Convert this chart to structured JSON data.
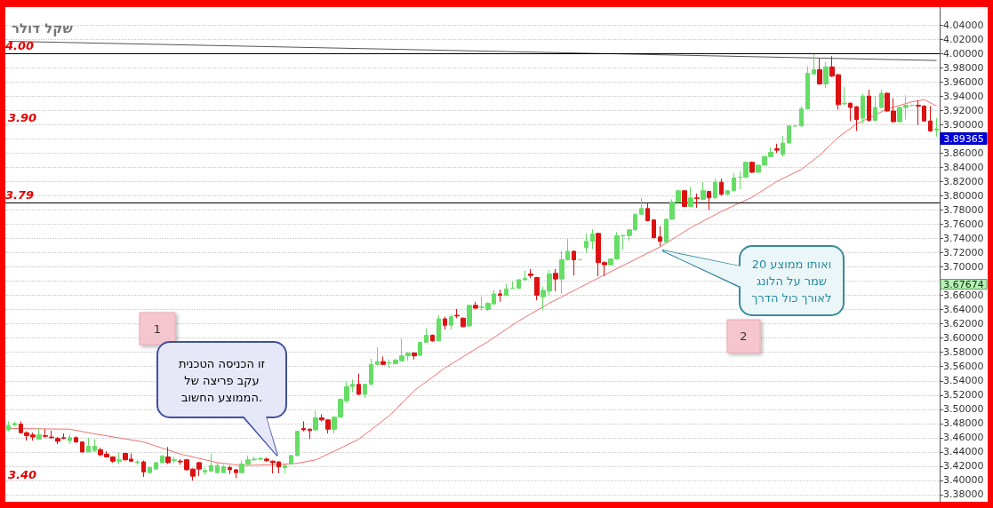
{
  "chart_data": {
    "type": "candlestick",
    "title": "שקל דולר",
    "categories": [
      null,
      null,
      null,
      null,
      null,
      null,
      null,
      null,
      null,
      null,
      null,
      null,
      null,
      null,
      null,
      null,
      null,
      null,
      null,
      null,
      null,
      null,
      null,
      null,
      null,
      null,
      null,
      null,
      null,
      null,
      null,
      null,
      null,
      null,
      null,
      null,
      null,
      null,
      null,
      null,
      null,
      null,
      null,
      null,
      null,
      null,
      null,
      null,
      null,
      null,
      null,
      null,
      null,
      null,
      null,
      null,
      null,
      null,
      null,
      null,
      null,
      null,
      null,
      null,
      null,
      null,
      null,
      null,
      null,
      null,
      null,
      null,
      null,
      null,
      null,
      null,
      null,
      null,
      null,
      null,
      null,
      null,
      null,
      null,
      null,
      null,
      null,
      null,
      null,
      null,
      null,
      null,
      null,
      null,
      null,
      null,
      null,
      null,
      null,
      null,
      null,
      null,
      null,
      null,
      null,
      null,
      null,
      null,
      null,
      null,
      null,
      null,
      null,
      null,
      null,
      null,
      null,
      null,
      null,
      null,
      null,
      null,
      null,
      null,
      null,
      null,
      null,
      null,
      null,
      null,
      null,
      null,
      null,
      null,
      null,
      null,
      null,
      null,
      null,
      null,
      null,
      null,
      null,
      null,
      null,
      null,
      null,
      null,
      null,
      null,
      null,
      null
    ],
    "ohlc": [
      [
        3.471,
        3.483,
        3.469,
        3.477
      ],
      [
        3.478,
        3.482,
        3.476,
        3.48
      ],
      [
        3.479,
        3.483,
        3.466,
        3.467
      ],
      [
        3.467,
        3.469,
        3.456,
        3.463
      ],
      [
        3.464,
        3.467,
        3.456,
        3.461
      ],
      [
        3.458,
        3.474,
        3.458,
        3.464
      ],
      [
        3.463,
        3.472,
        3.46,
        3.462
      ],
      [
        3.461,
        3.47,
        3.459,
        3.46
      ],
      [
        3.459,
        3.461,
        3.451,
        3.455
      ],
      [
        3.46,
        3.466,
        3.458,
        3.459
      ],
      [
        3.456,
        3.465,
        3.451,
        3.46
      ],
      [
        3.46,
        3.462,
        3.453,
        3.454
      ],
      [
        3.454,
        3.455,
        3.439,
        3.44
      ],
      [
        3.44,
        3.46,
        3.44,
        3.448
      ],
      [
        3.442,
        3.458,
        3.44,
        3.448
      ],
      [
        3.443,
        3.446,
        3.434,
        3.436
      ],
      [
        3.437,
        3.441,
        3.432,
        3.433
      ],
      [
        3.433,
        3.434,
        3.425,
        3.427
      ],
      [
        3.427,
        3.439,
        3.423,
        3.429
      ],
      [
        3.438,
        3.439,
        3.428,
        3.429
      ],
      [
        3.43,
        3.438,
        3.426,
        3.427
      ],
      [
        3.425,
        3.429,
        3.422,
        3.426
      ],
      [
        3.426,
        3.428,
        3.405,
        3.412
      ],
      [
        3.411,
        3.42,
        3.41,
        3.418
      ],
      [
        3.416,
        3.426,
        3.415,
        3.425
      ],
      [
        3.425,
        3.436,
        3.424,
        3.434
      ],
      [
        3.433,
        3.447,
        3.423,
        3.425
      ],
      [
        3.428,
        3.433,
        3.424,
        3.429
      ],
      [
        3.427,
        3.43,
        3.422,
        3.426
      ],
      [
        3.429,
        3.43,
        3.414,
        3.415
      ],
      [
        3.416,
        3.417,
        3.4,
        3.406
      ],
      [
        3.425,
        3.426,
        3.406,
        3.416
      ],
      [
        3.412,
        3.418,
        3.408,
        3.414
      ],
      [
        3.413,
        3.438,
        3.412,
        3.421
      ],
      [
        3.411,
        3.425,
        3.41,
        3.421
      ],
      [
        3.411,
        3.422,
        3.41,
        3.419
      ],
      [
        3.418,
        3.421,
        3.409,
        3.415
      ],
      [
        3.415,
        3.416,
        3.403,
        3.411
      ],
      [
        3.411,
        3.428,
        3.41,
        3.423
      ],
      [
        3.423,
        3.435,
        3.422,
        3.429
      ],
      [
        3.429,
        3.433,
        3.427,
        3.43
      ],
      [
        3.43,
        3.432,
        3.428,
        3.431
      ],
      [
        3.43,
        3.432,
        3.426,
        3.428
      ],
      [
        3.427,
        3.428,
        3.41,
        3.425
      ],
      [
        3.426,
        3.427,
        3.41,
        3.419
      ],
      [
        3.418,
        3.422,
        3.41,
        3.421
      ],
      [
        3.423,
        3.436,
        3.422,
        3.435
      ],
      [
        3.435,
        3.47,
        3.434,
        3.469
      ],
      [
        3.473,
        3.483,
        3.469,
        3.471
      ],
      [
        3.472,
        3.473,
        3.458,
        3.47
      ],
      [
        3.471,
        3.498,
        3.47,
        3.488
      ],
      [
        3.488,
        3.493,
        3.483,
        3.485
      ],
      [
        3.485,
        3.486,
        3.466,
        3.472
      ],
      [
        3.472,
        3.49,
        3.466,
        3.489
      ],
      [
        3.489,
        3.515,
        3.488,
        3.514
      ],
      [
        3.512,
        3.539,
        3.509,
        3.532
      ],
      [
        3.532,
        3.542,
        3.524,
        3.535
      ],
      [
        3.535,
        3.55,
        3.52,
        3.521
      ],
      [
        3.521,
        3.536,
        3.516,
        3.535
      ],
      [
        3.535,
        3.571,
        3.534,
        3.563
      ],
      [
        3.563,
        3.587,
        3.562,
        3.567
      ],
      [
        3.567,
        3.574,
        3.562,
        3.563
      ],
      [
        3.565,
        3.57,
        3.558,
        3.565
      ],
      [
        3.564,
        3.571,
        3.563,
        3.569
      ],
      [
        3.568,
        3.599,
        3.568,
        3.575
      ],
      [
        3.575,
        3.58,
        3.568,
        3.579
      ],
      [
        3.579,
        3.58,
        3.57,
        3.575
      ],
      [
        3.576,
        3.595,
        3.575,
        3.594
      ],
      [
        3.594,
        3.614,
        3.594,
        3.604
      ],
      [
        3.604,
        3.605,
        3.595,
        3.596
      ],
      [
        3.596,
        3.632,
        3.596,
        3.627
      ],
      [
        3.627,
        3.63,
        3.612,
        3.618
      ],
      [
        3.618,
        3.633,
        3.612,
        3.63
      ],
      [
        3.632,
        3.641,
        3.628,
        3.631
      ],
      [
        3.628,
        3.629,
        3.615,
        3.616
      ],
      [
        3.617,
        3.647,
        3.616,
        3.646
      ],
      [
        3.646,
        3.651,
        3.641,
        3.642
      ],
      [
        3.643,
        3.658,
        3.639,
        3.644
      ],
      [
        3.64,
        3.65,
        3.638,
        3.649
      ],
      [
        3.648,
        3.668,
        3.647,
        3.662
      ],
      [
        3.662,
        3.668,
        3.651,
        3.66
      ],
      [
        3.66,
        3.676,
        3.659,
        3.669
      ],
      [
        3.67,
        3.68,
        3.669,
        3.67
      ],
      [
        3.67,
        3.683,
        3.669,
        3.682
      ],
      [
        3.682,
        3.695,
        3.681,
        3.684
      ],
      [
        3.69,
        3.697,
        3.684,
        3.688
      ],
      [
        3.685,
        3.686,
        3.653,
        3.66
      ],
      [
        3.658,
        3.672,
        3.639,
        3.667
      ],
      [
        3.666,
        3.696,
        3.66,
        3.69
      ],
      [
        3.691,
        3.697,
        3.666,
        3.683
      ],
      [
        3.683,
        3.722,
        3.662,
        3.71
      ],
      [
        3.71,
        3.739,
        3.709,
        3.722
      ],
      [
        3.722,
        3.723,
        3.688,
        3.71
      ],
      [
        3.71,
        3.711,
        3.709,
        3.71
      ],
      [
        3.727,
        3.747,
        3.72,
        3.736
      ],
      [
        3.736,
        3.753,
        3.725,
        3.746
      ],
      [
        3.747,
        3.748,
        3.687,
        3.706
      ],
      [
        3.706,
        3.708,
        3.687,
        3.703
      ],
      [
        3.703,
        3.712,
        3.702,
        3.711
      ],
      [
        3.711,
        3.749,
        3.71,
        3.744
      ],
      [
        3.744,
        3.745,
        3.724,
        3.744
      ],
      [
        3.744,
        3.753,
        3.737,
        3.752
      ],
      [
        3.752,
        3.775,
        3.751,
        3.774
      ],
      [
        3.774,
        3.797,
        3.773,
        3.782
      ],
      [
        3.782,
        3.79,
        3.764,
        3.765
      ],
      [
        3.766,
        3.767,
        3.74,
        3.741
      ],
      [
        3.742,
        3.757,
        3.729,
        3.736
      ],
      [
        3.735,
        3.768,
        3.734,
        3.767
      ],
      [
        3.767,
        3.795,
        3.766,
        3.791
      ],
      [
        3.791,
        3.808,
        3.79,
        3.807
      ],
      [
        3.807,
        3.808,
        3.784,
        3.785
      ],
      [
        3.785,
        3.812,
        3.784,
        3.797
      ],
      [
        3.797,
        3.803,
        3.783,
        3.796
      ],
      [
        3.795,
        3.819,
        3.794,
        3.807
      ],
      [
        3.806,
        3.807,
        3.78,
        3.797
      ],
      [
        3.797,
        3.824,
        3.796,
        3.819
      ],
      [
        3.819,
        3.824,
        3.8,
        3.802
      ],
      [
        3.802,
        3.808,
        3.801,
        3.807
      ],
      [
        3.807,
        3.832,
        3.806,
        3.825
      ],
      [
        3.826,
        3.834,
        3.809,
        3.826
      ],
      [
        3.826,
        3.848,
        3.825,
        3.847
      ],
      [
        3.847,
        3.848,
        3.832,
        3.833
      ],
      [
        3.833,
        3.844,
        3.832,
        3.843
      ],
      [
        3.843,
        3.856,
        3.842,
        3.855
      ],
      [
        3.855,
        3.868,
        3.854,
        3.861
      ],
      [
        3.866,
        3.873,
        3.86,
        3.864
      ],
      [
        3.858,
        3.884,
        3.855,
        3.874
      ],
      [
        3.874,
        3.899,
        3.873,
        3.898
      ],
      [
        3.898,
        3.899,
        3.897,
        3.898
      ],
      [
        3.898,
        3.926,
        3.897,
        3.922
      ],
      [
        3.922,
        3.982,
        3.921,
        3.972
      ],
      [
        3.971,
        3.999,
        3.97,
        3.977
      ],
      [
        3.977,
        3.993,
        3.956,
        3.957
      ],
      [
        3.957,
        3.988,
        3.951,
        3.981
      ],
      [
        3.981,
        3.996,
        3.967,
        3.968
      ],
      [
        3.97,
        3.971,
        3.921,
        3.928
      ],
      [
        3.929,
        3.953,
        3.928,
        3.93
      ],
      [
        3.93,
        3.931,
        3.905,
        3.924
      ],
      [
        3.925,
        3.926,
        3.891,
        3.907
      ],
      [
        3.909,
        3.943,
        3.901,
        3.94
      ],
      [
        3.94,
        3.949,
        3.904,
        3.906
      ],
      [
        3.906,
        3.94,
        3.905,
        3.924
      ],
      [
        3.924,
        3.949,
        3.923,
        3.944
      ],
      [
        3.944,
        3.945,
        3.918,
        3.919
      ],
      [
        3.919,
        3.937,
        3.903,
        3.904
      ],
      [
        3.904,
        3.925,
        3.903,
        3.924
      ],
      [
        3.924,
        3.941,
        3.907,
        3.927
      ],
      [
        3.927,
        3.928,
        3.926,
        3.927
      ],
      [
        3.927,
        3.934,
        3.899,
        3.926
      ],
      [
        3.926,
        3.927,
        3.904,
        3.905
      ],
      [
        3.905,
        3.926,
        3.89,
        3.891
      ],
      [
        3.892,
        3.909,
        3.883,
        3.894
      ]
    ],
    "colors": [
      "#66dd66",
      "#66dd66",
      "#dd1111",
      "#dd1111",
      "#dd1111",
      "#66dd66",
      "#dd1111",
      "#dd1111",
      "#dd1111",
      "#dd1111",
      "#66dd66",
      "#dd1111",
      "#dd1111",
      "#66dd66",
      "#66dd66",
      "#dd1111",
      "#dd1111",
      "#dd1111",
      "#66dd66",
      "#dd1111",
      "#dd1111",
      "#66dd66",
      "#dd1111",
      "#66dd66",
      "#66dd66",
      "#66dd66",
      "#dd1111",
      "#66dd66",
      "#dd1111",
      "#dd1111",
      "#dd1111",
      "#dd1111",
      "#66dd66",
      "#66dd66",
      "#66dd66",
      "#66dd66",
      "#dd1111",
      "#dd1111",
      "#66dd66",
      "#66dd66",
      "#66dd66",
      "#66dd66",
      "#dd1111",
      "#dd1111",
      "#dd1111",
      "#66dd66",
      "#66dd66",
      "#66dd66",
      "#dd1111",
      "#dd1111",
      "#66dd66",
      "#dd1111",
      "#dd1111",
      "#66dd66",
      "#66dd66",
      "#66dd66",
      "#66dd66",
      "#dd1111",
      "#66dd66",
      "#66dd66",
      "#66dd66",
      "#dd1111",
      "#66dd66",
      "#66dd66",
      "#66dd66",
      "#66dd66",
      "#dd1111",
      "#66dd66",
      "#66dd66",
      "#dd1111",
      "#66dd66",
      "#dd1111",
      "#66dd66",
      "#dd1111",
      "#dd1111",
      "#66dd66",
      "#dd1111",
      "#66dd66",
      "#66dd66",
      "#66dd66",
      "#dd1111",
      "#66dd66",
      "#66dd66",
      "#66dd66",
      "#66dd66",
      "#dd1111",
      "#dd1111",
      "#66dd66",
      "#66dd66",
      "#dd1111",
      "#66dd66",
      "#66dd66",
      "#dd1111",
      "#66dd66",
      "#66dd66",
      "#66dd66",
      "#dd1111",
      "#dd1111",
      "#66dd66",
      "#66dd66",
      "#66dd66",
      "#66dd66",
      "#66dd66",
      "#66dd66",
      "#dd1111",
      "#dd1111",
      "#dd1111",
      "#66dd66",
      "#66dd66",
      "#66dd66",
      "#dd1111",
      "#66dd66",
      "#dd1111",
      "#66dd66",
      "#dd1111",
      "#66dd66",
      "#dd1111",
      "#66dd66",
      "#66dd66",
      "#66dd66",
      "#66dd66",
      "#dd1111",
      "#66dd66",
      "#66dd66",
      "#66dd66",
      "#dd1111",
      "#66dd66",
      "#66dd66",
      "#66dd66",
      "#66dd66",
      "#66dd66",
      "#66dd66",
      "#dd1111",
      "#66dd66",
      "#dd1111",
      "#dd1111",
      "#66dd66",
      "#dd1111",
      "#dd1111",
      "#66dd66",
      "#dd1111",
      "#66dd66",
      "#66dd66",
      "#dd1111",
      "#dd1111",
      "#66dd66",
      "#66dd66",
      "#66dd66",
      "#dd1111",
      "#dd1111",
      "#dd1111",
      "#66dd66"
    ],
    "series": [
      {
        "type": "line",
        "color": "#f07070",
        "values": [
          3.473,
          null,
          null,
          null,
          null,
          null,
          null,
          null,
          null,
          null,
          3.472,
          null,
          null,
          3.467,
          null,
          null,
          null,
          null,
          null,
          null,
          null,
          null,
          3.454,
          null,
          null,
          null,
          null,
          null,
          3.437,
          null,
          null,
          null,
          null,
          null,
          3.425,
          null,
          null,
          null,
          3.421,
          null,
          null,
          null,
          null,
          3.422,
          null,
          null,
          null,
          3.424,
          null,
          null,
          3.429,
          null,
          null,
          3.441,
          null,
          null,
          null,
          3.458,
          null,
          null,
          null,
          null,
          3.491,
          null,
          null,
          null,
          3.526,
          null,
          null,
          null,
          null,
          3.558,
          null,
          null,
          3.574,
          null,
          null,
          null,
          3.595,
          null,
          null,
          null,
          null,
          3.624,
          null,
          null,
          null,
          null,
          3.649,
          null,
          null,
          null,
          null,
          null,
          null,
          null,
          null,
          3.689,
          null,
          null,
          null,
          null,
          null,
          null,
          null,
          null,
          3.728,
          null,
          null,
          null,
          null,
          3.755,
          null,
          null,
          null,
          null,
          3.778,
          null,
          null,
          null,
          null,
          3.798,
          null,
          null,
          null,
          3.82,
          null,
          null,
          null,
          3.837,
          null,
          null,
          3.857,
          null,
          null,
          3.882,
          null,
          null,
          3.901,
          null,
          null,
          null,
          null,
          3.922,
          null,
          null,
          null,
          3.932,
          null,
          3.935,
          null,
          3.926
        ]
      },
      {
        "type": "line",
        "color": "#555555",
        "values": [
          4.017,
          null,
          null,
          null,
          null,
          null,
          null,
          null,
          null,
          null,
          null,
          null,
          null,
          null,
          null,
          null,
          null,
          null,
          null,
          null,
          null,
          null,
          null,
          null,
          null,
          null,
          null,
          null,
          null,
          null,
          null,
          null,
          null,
          null,
          null,
          null,
          null,
          null,
          null,
          null,
          null,
          null,
          null,
          null,
          null,
          null,
          null,
          null,
          null,
          null,
          null,
          null,
          null,
          null,
          null,
          null,
          null,
          null,
          null,
          null,
          null,
          null,
          null,
          null,
          null,
          null,
          null,
          null,
          null,
          null,
          null,
          null,
          null,
          null,
          null,
          null,
          null,
          null,
          null,
          null,
          null,
          null,
          null,
          null,
          null,
          null,
          null,
          null,
          null,
          null,
          null,
          null,
          null,
          null,
          null,
          null,
          null,
          null,
          null,
          null,
          null,
          null,
          null,
          null,
          null,
          null,
          null,
          null,
          null,
          null,
          null,
          null,
          null,
          null,
          null,
          null,
          null,
          null,
          null,
          null,
          null,
          null,
          null,
          null,
          null,
          null,
          null,
          null,
          null,
          null,
          null,
          null,
          null,
          null,
          null,
          null,
          null,
          null,
          null,
          null,
          null,
          null,
          null,
          null,
          null,
          null,
          null,
          null,
          null,
          null,
          null,
          3.99
        ]
      }
    ],
    "ylim": [
      3.37,
      4.065
    ],
    "yticks": [
      {
        "value": 3.38,
        "label": "3.38000"
      },
      {
        "value": 3.4,
        "label": "3.40000"
      },
      {
        "value": 3.42,
        "label": "3.42000"
      },
      {
        "value": 3.44,
        "label": "3.44000"
      },
      {
        "value": 3.46,
        "label": "3.46000"
      },
      {
        "value": 3.48,
        "label": "3.48000"
      },
      {
        "value": 3.5,
        "label": "3.50000"
      },
      {
        "value": 3.52,
        "label": "3.52000"
      },
      {
        "value": 3.54,
        "label": "3.54000"
      },
      {
        "value": 3.56,
        "label": "3.56000"
      },
      {
        "value": 3.58,
        "label": "3.58000"
      },
      {
        "value": 3.6,
        "label": "3.60000"
      },
      {
        "value": 3.62,
        "label": "3.62000"
      },
      {
        "value": 3.64,
        "label": "3.64000"
      },
      {
        "value": 3.66,
        "label": "3.66000"
      },
      {
        "value": 3.68,
        "label": null
      },
      {
        "value": 3.7,
        "label": "3.70000"
      },
      {
        "value": 3.72,
        "label": "3.72000"
      },
      {
        "value": 3.74,
        "label": "3.74000"
      },
      {
        "value": 3.76,
        "label": "3.76000"
      },
      {
        "value": 3.78,
        "label": "3.78000"
      },
      {
        "value": 3.8,
        "label": "3.80000"
      },
      {
        "value": 3.82,
        "label": "3.82000"
      },
      {
        "value": 3.84,
        "label": "3.84000"
      },
      {
        "value": 3.86,
        "label": "3.86000"
      },
      {
        "value": 3.88,
        "label": null
      },
      {
        "value": 3.9,
        "label": "3.90000"
      },
      {
        "value": 3.92,
        "label": "3.92000"
      },
      {
        "value": 3.94,
        "label": "3.94000"
      },
      {
        "value": 3.96,
        "label": "3.96000"
      },
      {
        "value": 3.98,
        "label": "3.98000"
      },
      {
        "value": 4.0,
        "label": "4.00000"
      },
      {
        "value": 4.02,
        "label": "4.02000"
      },
      {
        "value": 4.04,
        "label": "4.04000"
      }
    ],
    "ref_lines": [
      {
        "axis": "y",
        "value": 4.0,
        "label": "4.00",
        "color": "#000000",
        "line_style": "solid"
      },
      {
        "axis": "y",
        "value": 3.79,
        "label": "3.79",
        "color": "#000000",
        "line_style": "solid"
      }
    ],
    "annotations": [
      "זו הכניסה הטכנית\nעקב פריצה של\nהממוצע החשוב.",
      "ואותו ממוצע 20\nשמר על הלונג\nלאורך כול הדרך",
      "1",
      "2",
      "3.89365",
      "3.67674",
      "3.90",
      "3.40"
    ],
    "grid": "y",
    "tick_labels": "y"
  }
}
